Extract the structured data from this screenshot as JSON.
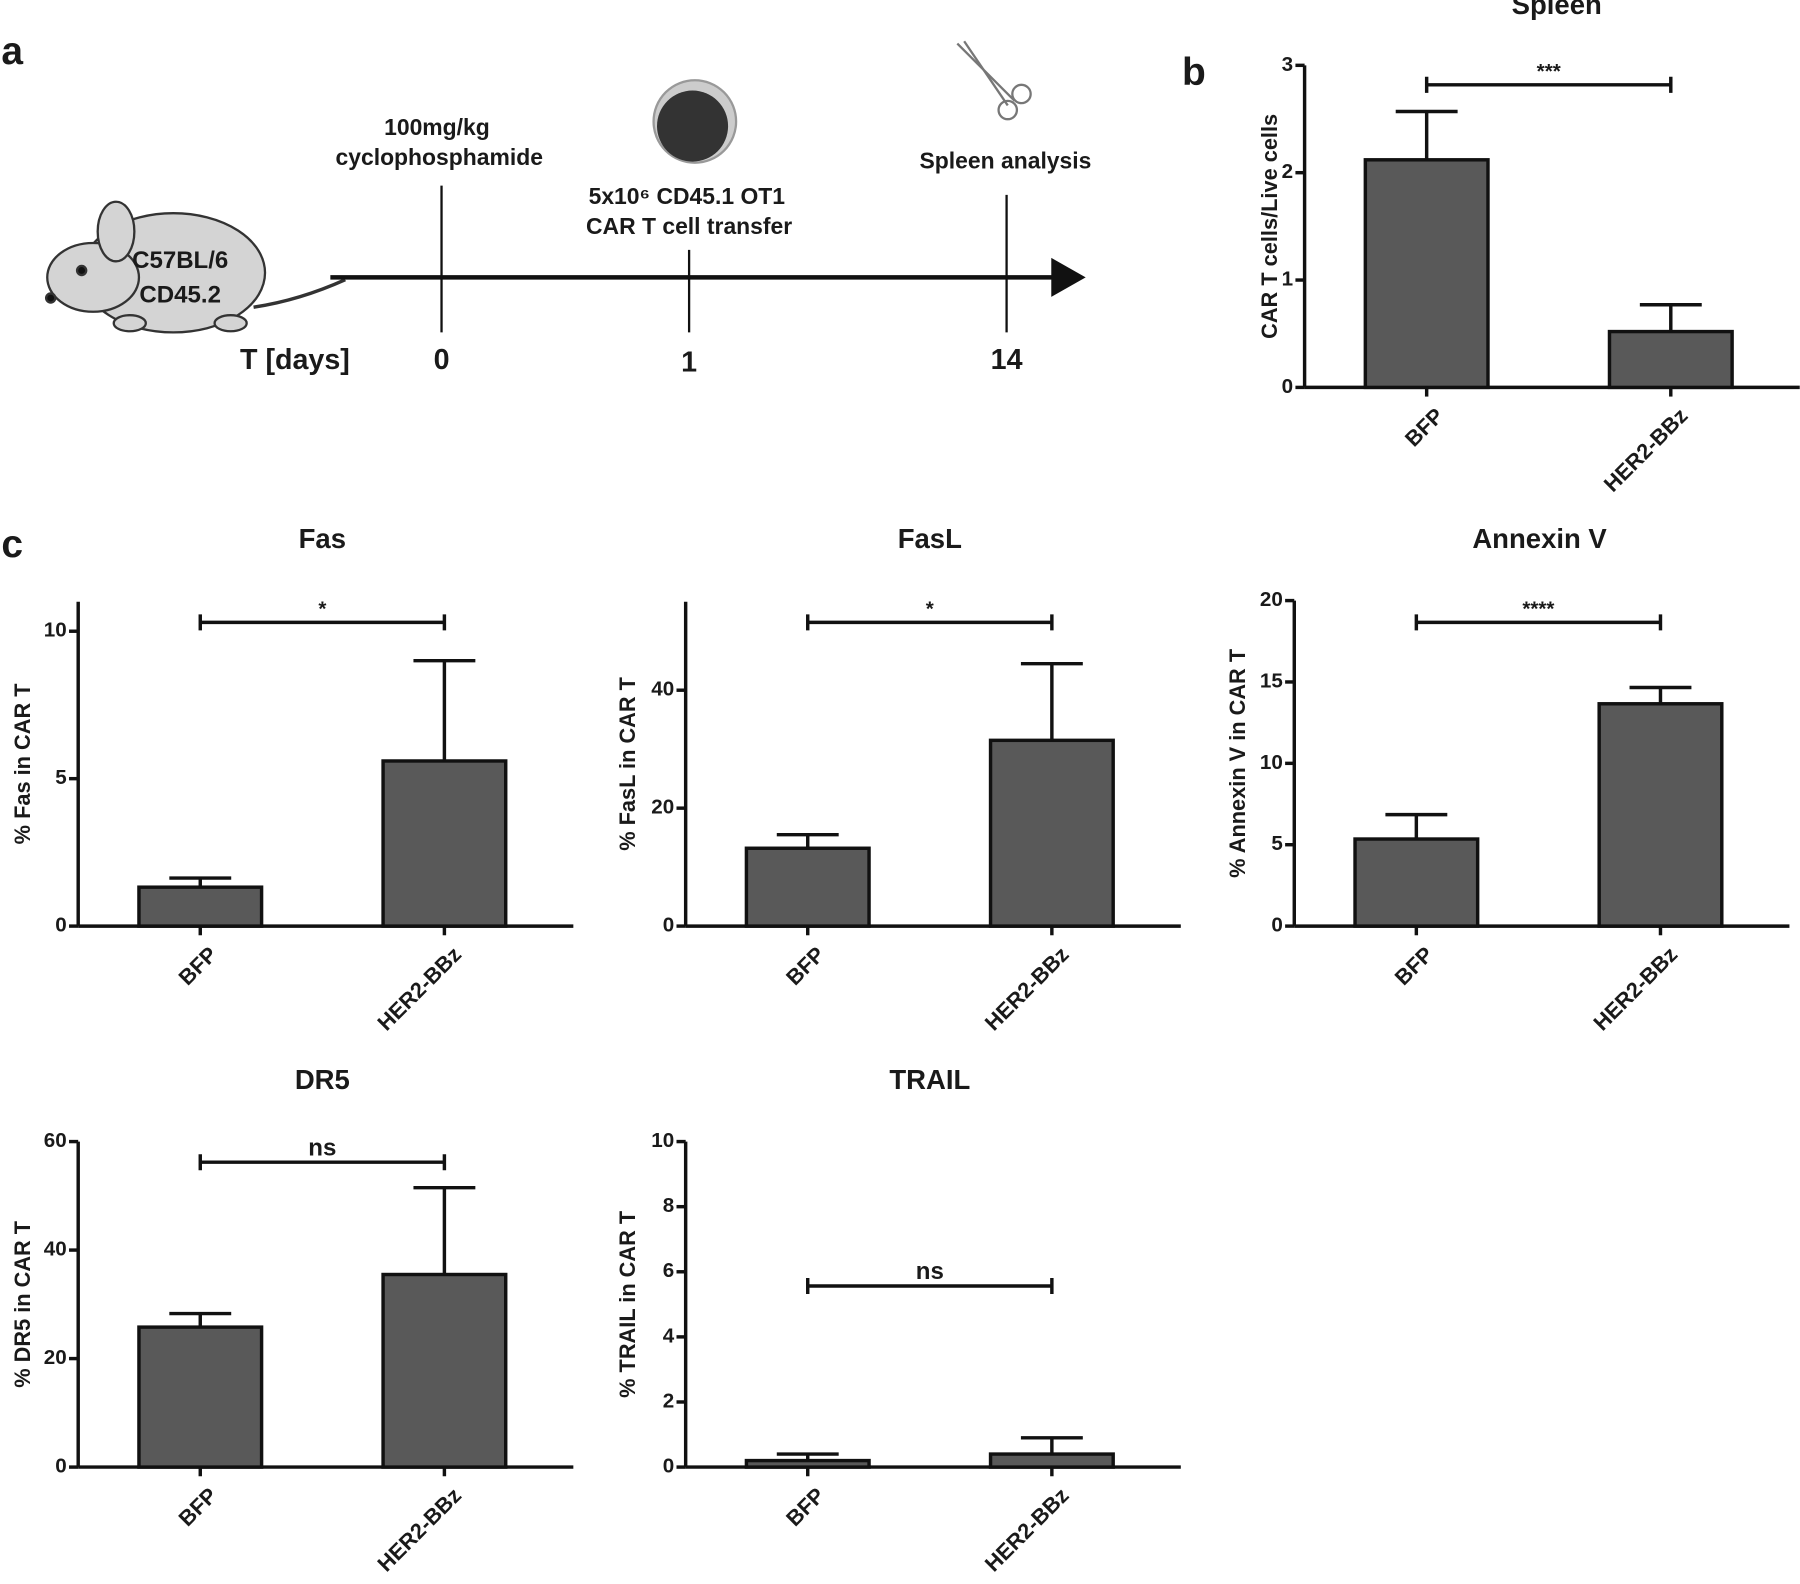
{
  "panels": [
    "a",
    "b",
    "c"
  ],
  "timeline": {
    "mouse_label": [
      "C57BL/6",
      "CD45.2"
    ],
    "axis_label": "T [days]",
    "events": [
      {
        "day": "0",
        "label": [
          "100mg/kg",
          "cyclophosphamide"
        ]
      },
      {
        "day": "1",
        "label": [
          "5x10⁶ CD45.1 OT1",
          "CAR T cell transfer"
        ]
      },
      {
        "day": "14",
        "label": [
          "Spleen analysis"
        ]
      }
    ]
  },
  "chart_data": [
    {
      "type": "bar",
      "title": "Spleen",
      "y_label": "CAR T cells/Live cells",
      "categories": [
        "BFP",
        "HER2-BBz"
      ],
      "values": [
        2.12,
        0.52
      ],
      "errors": [
        0.45,
        0.25
      ],
      "ylim": [
        0,
        3
      ],
      "yticks": [
        0,
        1,
        2,
        3
      ],
      "color": "#595959",
      "significance": "***"
    },
    {
      "type": "bar",
      "title": "Fas",
      "y_label": "% Fas in CAR T",
      "categories": [
        "BFP",
        "HER2-BBz"
      ],
      "values": [
        1.32,
        5.6
      ],
      "errors": [
        0.31,
        3.4
      ],
      "ylim": [
        0,
        11
      ],
      "yticks": [
        0,
        5,
        10
      ],
      "color": "#595959",
      "significance": "*"
    },
    {
      "type": "bar",
      "title": "FasL",
      "y_label": "% FasL in CAR T",
      "categories": [
        "BFP",
        "HER2-BBz"
      ],
      "values": [
        13.2,
        31.5
      ],
      "errors": [
        2.3,
        13
      ],
      "ylim": [
        0,
        55
      ],
      "yticks": [
        0,
        20,
        40
      ],
      "color": "#595959",
      "significance": "*"
    },
    {
      "type": "bar",
      "title": "Annexin V",
      "y_label": "% Annexin V in CAR T",
      "categories": [
        "BFP",
        "HER2-BBz"
      ],
      "values": [
        5.35,
        13.66
      ],
      "errors": [
        1.5,
        1.0
      ],
      "ylim": [
        0,
        20
      ],
      "yticks": [
        0,
        5,
        10,
        15,
        20
      ],
      "color": "#595959",
      "significance": "****"
    },
    {
      "type": "bar",
      "title": "DR5",
      "y_label": "% DR5 in CAR T",
      "categories": [
        "BFP",
        "HER2-BBz"
      ],
      "values": [
        25.8,
        35.5
      ],
      "errors": [
        2.5,
        16
      ],
      "ylim": [
        0,
        60
      ],
      "yticks": [
        0,
        20,
        40,
        60
      ],
      "color": "#595959",
      "significance": "ns"
    },
    {
      "type": "bar",
      "title": "TRAIL",
      "y_label": "% TRAIL in CAR T",
      "categories": [
        "BFP",
        "HER2-BBz"
      ],
      "values": [
        0.2,
        0.4
      ],
      "errors": [
        0.2,
        0.5
      ],
      "ylim": [
        0,
        10
      ],
      "yticks": [
        0,
        2,
        4,
        6,
        8,
        10
      ],
      "color": "#595959",
      "significance": "ns"
    }
  ]
}
